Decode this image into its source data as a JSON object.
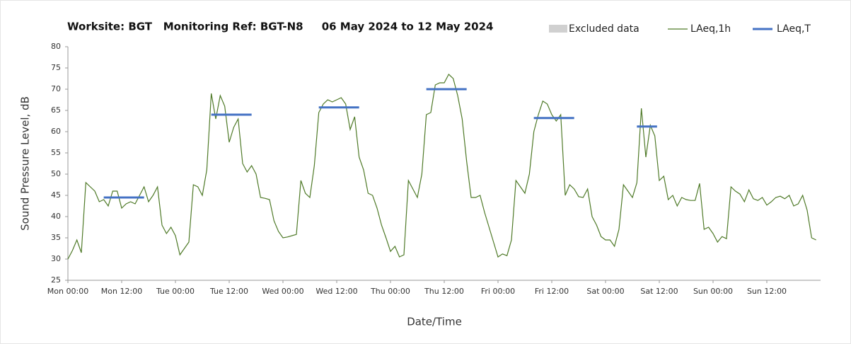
{
  "chart_data": {
    "type": "line",
    "title": "Worksite: BGT   Monitoring Ref: BGT-N8     06 May 2024 to 12 May 2024",
    "x_label": "Date/Time",
    "y_label": "Sound Pressure Level, dB",
    "xlim": [
      0,
      168
    ],
    "ylim": [
      25,
      80
    ],
    "yticks": [
      25,
      30,
      35,
      40,
      45,
      50,
      55,
      60,
      65,
      70,
      75,
      80
    ],
    "xticks": [
      {
        "value": 0,
        "label": "Mon 00:00"
      },
      {
        "value": 12,
        "label": "Mon 12:00"
      },
      {
        "value": 24,
        "label": "Tue 00:00"
      },
      {
        "value": 36,
        "label": "Tue 12:00"
      },
      {
        "value": 48,
        "label": "Wed 00:00"
      },
      {
        "value": 60,
        "label": "Wed 12:00"
      },
      {
        "value": 72,
        "label": "Thu 00:00"
      },
      {
        "value": 84,
        "label": "Thu 12:00"
      },
      {
        "value": 96,
        "label": "Fri 00:00"
      },
      {
        "value": 108,
        "label": "Fri 12:00"
      },
      {
        "value": 120,
        "label": "Sat 00:00"
      },
      {
        "value": 132,
        "label": "Sat 12:00"
      },
      {
        "value": 144,
        "label": "Sun 00:00"
      },
      {
        "value": 156,
        "label": "Sun 12:00"
      }
    ],
    "excluded_data": {
      "name": "Excluded data",
      "color": "#d0d0d0"
    },
    "series": [
      {
        "name": "LAeq,1h",
        "color": "#4f7a28",
        "x": [
          0,
          1,
          2,
          3,
          4,
          5,
          6,
          7,
          8,
          9,
          10,
          11,
          12,
          13,
          14,
          15,
          16,
          17,
          18,
          19,
          20,
          21,
          22,
          23,
          24,
          25,
          26,
          27,
          28,
          29,
          30,
          31,
          32,
          33,
          34,
          35,
          36,
          37,
          38,
          39,
          40,
          41,
          42,
          43,
          44,
          45,
          46,
          47,
          48,
          49,
          50,
          51,
          52,
          53,
          54,
          55,
          56,
          57,
          58,
          59,
          60,
          61,
          62,
          63,
          64,
          65,
          66,
          67,
          68,
          69,
          70,
          71,
          72,
          73,
          74,
          75,
          76,
          77,
          78,
          79,
          80,
          81,
          82,
          83,
          84,
          85,
          86,
          87,
          88,
          89,
          90,
          91,
          92,
          93,
          94,
          95,
          96,
          97,
          98,
          99,
          100,
          101,
          102,
          103,
          104,
          105,
          106,
          107,
          108,
          109,
          110,
          111,
          112,
          113,
          114,
          115,
          116,
          117,
          118,
          119,
          120,
          121,
          122,
          123,
          124,
          125,
          126,
          127,
          128,
          129,
          130,
          131,
          132,
          133,
          134,
          135,
          136,
          137,
          138,
          139,
          140,
          141,
          142,
          143,
          144,
          145,
          146,
          147,
          148,
          149,
          150,
          151,
          152,
          153,
          154,
          155,
          156,
          157,
          158,
          159,
          160,
          161,
          162,
          163,
          164,
          165,
          166,
          167
        ],
        "values": [
          30,
          32,
          34.5,
          31.5,
          48,
          47,
          46,
          43.5,
          44,
          42.5,
          46,
          46,
          42,
          43,
          43.5,
          43,
          45,
          47,
          43.5,
          45,
          47,
          38,
          36,
          37.5,
          35.5,
          31,
          32.5,
          34,
          47.5,
          47,
          45,
          51,
          69,
          63,
          68.5,
          66,
          57.5,
          61,
          63,
          52.5,
          50.5,
          52,
          50,
          44.5,
          44.3,
          44,
          39,
          36.5,
          35,
          35.2,
          35.5,
          35.8,
          48.5,
          45.5,
          44.5,
          52,
          64.5,
          66.5,
          67.5,
          67,
          67.5,
          68,
          66.5,
          60.5,
          63.5,
          54,
          51,
          45.5,
          45,
          42,
          38,
          35,
          31.8,
          33,
          30.5,
          31,
          48.5,
          46.5,
          44.5,
          50,
          64,
          64.5,
          71,
          71.5,
          71.5,
          73.5,
          72.5,
          68.5,
          63,
          53,
          44.5,
          44.5,
          45,
          41,
          37.5,
          34,
          30.5,
          31.2,
          30.8,
          34.5,
          48.5,
          47,
          45.5,
          50,
          60,
          64,
          67.2,
          66.5,
          64,
          62.5,
          64,
          45,
          47.5,
          46.5,
          44.7,
          44.5,
          46.5,
          40,
          38,
          35.3,
          34.5,
          34.5,
          33,
          37,
          47.5,
          46,
          44.5,
          48,
          65.5,
          54,
          61.5,
          59,
          48.5,
          49.5,
          44,
          45,
          42.5,
          44.5,
          44,
          43.8,
          43.8,
          47.8,
          37,
          37.5,
          36,
          34,
          35.3,
          34.8,
          47,
          46,
          45.3,
          43.5,
          46.3,
          44.2,
          43.8,
          44.5,
          42.7,
          43.5,
          44.5,
          44.8,
          44.2,
          45,
          42.5,
          43,
          45,
          41.5,
          35,
          34.5
        ]
      },
      {
        "name": "LAeq,T",
        "color": "#4472c4",
        "segments": [
          {
            "start": 8,
            "end": 17,
            "value": 44.5
          },
          {
            "start": 32,
            "end": 41,
            "value": 64
          },
          {
            "start": 56,
            "end": 65,
            "value": 65.7
          },
          {
            "start": 80,
            "end": 89,
            "value": 70
          },
          {
            "start": 104,
            "end": 113,
            "value": 63.2
          },
          {
            "start": 127,
            "end": 131.5,
            "value": 61.2
          }
        ]
      }
    ]
  }
}
